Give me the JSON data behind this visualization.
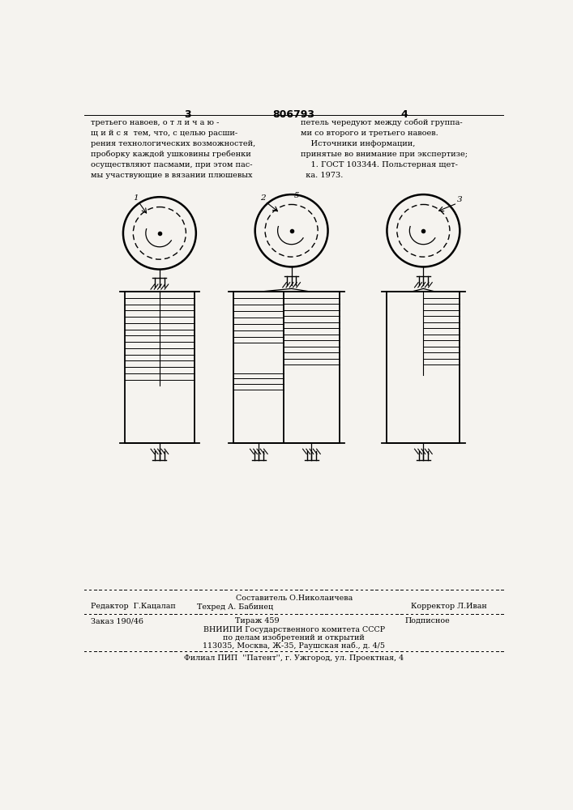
{
  "bg_color": "#f5f3ef",
  "page_num_left": "3",
  "page_num_center": "806793",
  "page_num_right": "4",
  "col_left_text": "третьего навоев, о т л и ч а ю -\nщ и й с я  тем, что, с целью расши-\nрения технологических возможностей,\nпроборку каждой ушковины гребенки\nосуществляют пасмами, при этом пас-\nмы участвующие в вязании плюшевых",
  "col_right_text": "петель чередуют между собой группа-\nми со второго и третьего навоев.\n    Источники информации,\nпринятые во внимание при экспертизе;\n    1. ГОСТ 103344. Польстерная щет-\n  ка. 1973.",
  "label_5": "5",
  "label_1": "1",
  "label_2": "2",
  "label_3": "3"
}
